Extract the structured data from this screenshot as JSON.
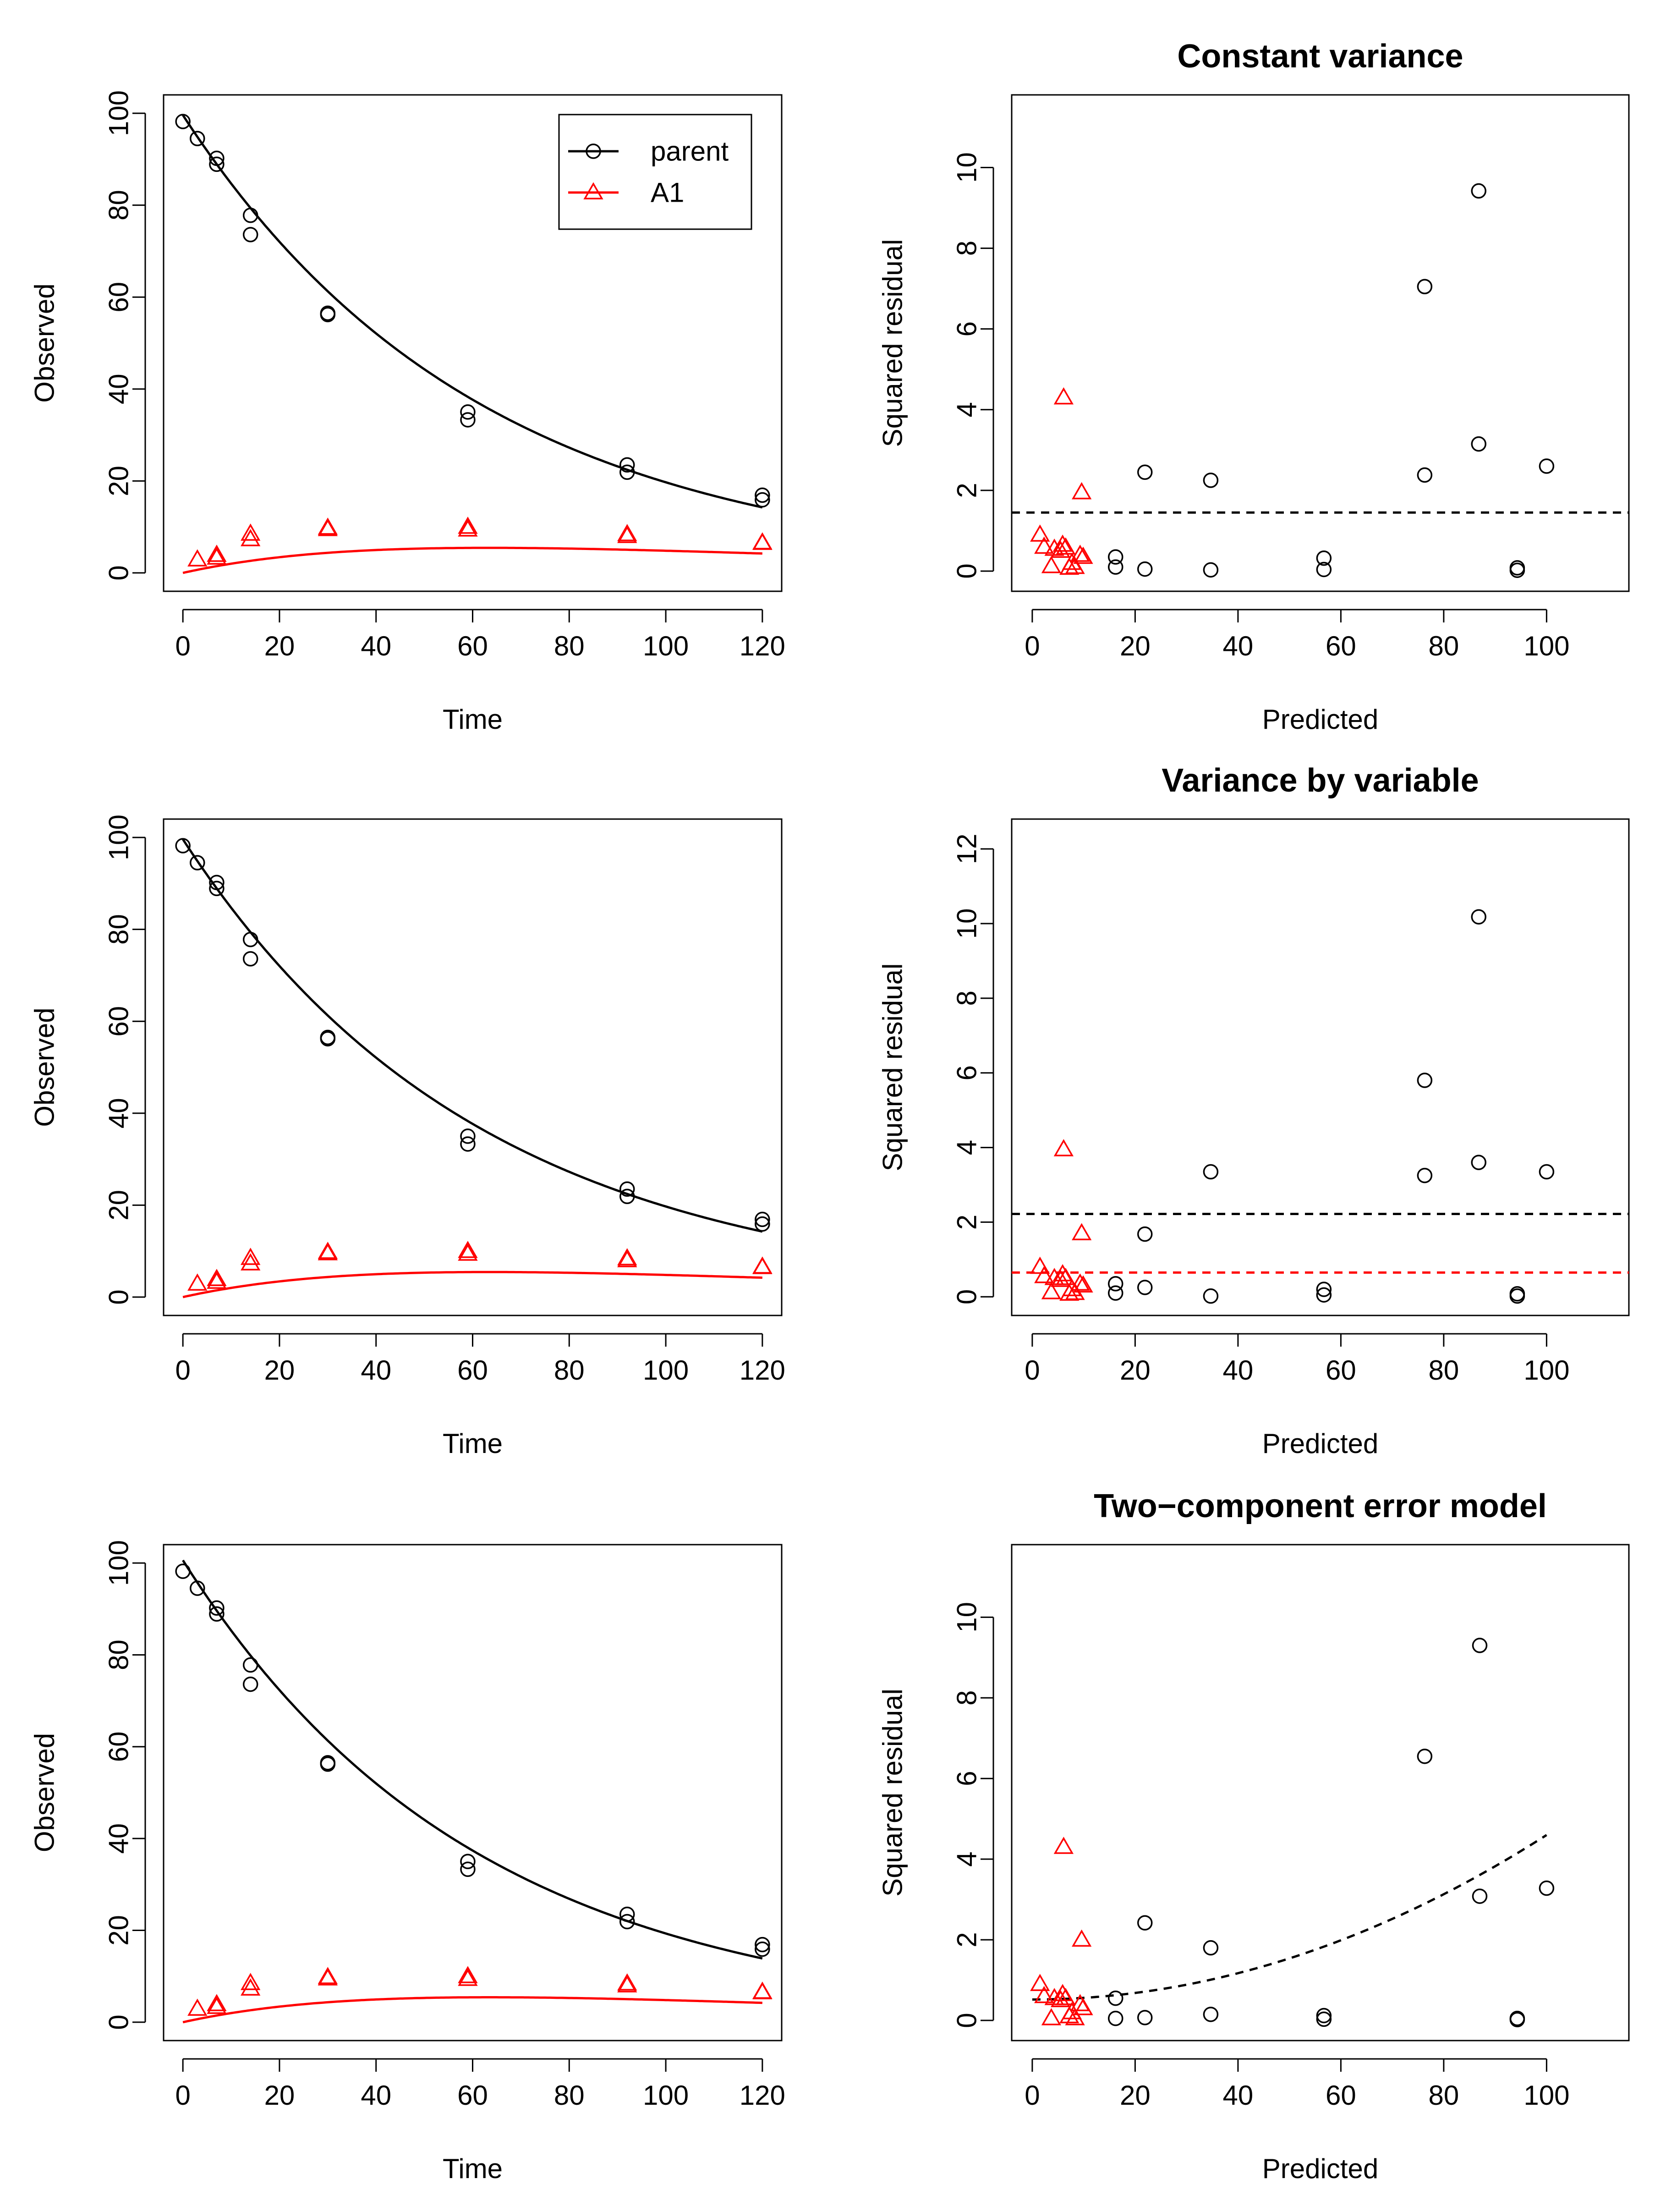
{
  "colors": {
    "parent": "#000000",
    "A1": "#ff0000"
  },
  "legend": {
    "items": [
      {
        "label": "parent",
        "marker": "circle",
        "color": "#000000"
      },
      {
        "label": "A1",
        "marker": "triangle",
        "color": "#ff0000"
      }
    ]
  },
  "chart_data": [
    {
      "id": "fit-const",
      "type": "scatter",
      "title": "",
      "xlabel": "Time",
      "ylabel": "Observed",
      "xlim": [
        -4,
        124
      ],
      "ylim": [
        -4,
        104
      ],
      "xticks": [
        0,
        20,
        40,
        60,
        80,
        100,
        120
      ],
      "yticks": [
        0,
        20,
        40,
        60,
        80,
        100
      ],
      "legend": true,
      "series": [
        {
          "name": "parent",
          "marker": "circle",
          "color": "#000000",
          "x": [
            0,
            3,
            7,
            7,
            14,
            14,
            30,
            30,
            59,
            59,
            92,
            92,
            120,
            120
          ],
          "y": [
            98.2,
            94.5,
            90.2,
            88.9,
            77.8,
            73.6,
            56.5,
            56.2,
            35.0,
            33.3,
            23.5,
            21.9,
            16.9,
            15.9
          ]
        },
        {
          "name": "A1",
          "marker": "triangle",
          "color": "#ff0000",
          "x": [
            3,
            7,
            7,
            14,
            14,
            30,
            30,
            59,
            59,
            92,
            92,
            120,
            120
          ],
          "y": [
            2.9,
            3.9,
            3.3,
            8.5,
            7.3,
            9.8,
            9.5,
            10.0,
            9.4,
            8.4,
            8.0,
            6.6,
            6.5
          ]
        }
      ],
      "curves": [
        {
          "name": "parent-fit",
          "color": "#000000",
          "model": "parent",
          "P0": 99.6,
          "k": 0.0162
        },
        {
          "name": "A1-fit",
          "color": "#ff0000",
          "model": "metabolite",
          "P0": 99.6,
          "k": 0.0162,
          "f": 0.145,
          "kA": 0.0154
        }
      ]
    },
    {
      "id": "resid-const",
      "type": "scatter",
      "title": "Constant variance",
      "xlabel": "Predicted",
      "ylabel": "Squared residual",
      "xlim": [
        -4,
        116
      ],
      "ylim": [
        -0.5,
        11.8
      ],
      "xticks": [
        0,
        20,
        40,
        60,
        80,
        100
      ],
      "yticks": [
        0,
        2,
        4,
        6,
        8,
        10
      ],
      "series": [
        {
          "name": "parent",
          "marker": "circle",
          "color": "#000000",
          "x": [
            16.2,
            16.2,
            21.9,
            21.9,
            34.7,
            34.7,
            56.7,
            56.7,
            76.3,
            76.3,
            86.8,
            86.8,
            94.3,
            94.3,
            100.0
          ],
          "y": [
            0.35,
            0.1,
            2.45,
            0.05,
            2.25,
            0.03,
            0.32,
            0.04,
            7.05,
            2.38,
            9.42,
            3.15,
            0.08,
            0.02,
            2.6
          ]
        },
        {
          "name": "A1",
          "marker": "triangle",
          "color": "#ff0000",
          "x": [
            1.5,
            2.3,
            3.7,
            4.3,
            5.5,
            5.9,
            6.1,
            6.5,
            7.2,
            7.7,
            8.3,
            9.3,
            9.6,
            9.9
          ],
          "y": [
            0.9,
            0.6,
            0.12,
            0.55,
            0.5,
            0.65,
            4.3,
            0.58,
            0.08,
            0.2,
            0.1,
            0.4,
            1.95,
            0.35
          ]
        }
      ],
      "hlines": [
        {
          "y": 1.45,
          "color": "#000000"
        }
      ]
    },
    {
      "id": "fit-var",
      "type": "scatter",
      "title": "",
      "xlabel": "Time",
      "ylabel": "Observed",
      "xlim": [
        -4,
        124
      ],
      "ylim": [
        -4,
        104
      ],
      "xticks": [
        0,
        20,
        40,
        60,
        80,
        100,
        120
      ],
      "yticks": [
        0,
        20,
        40,
        60,
        80,
        100
      ],
      "series": [
        {
          "name": "parent",
          "marker": "circle",
          "color": "#000000",
          "x": [
            0,
            3,
            7,
            7,
            14,
            14,
            30,
            30,
            59,
            59,
            92,
            92,
            120,
            120
          ],
          "y": [
            98.2,
            94.5,
            90.2,
            88.9,
            77.8,
            73.6,
            56.5,
            56.2,
            35.0,
            33.3,
            23.5,
            21.9,
            16.9,
            15.9
          ]
        },
        {
          "name": "A1",
          "marker": "triangle",
          "color": "#ff0000",
          "x": [
            3,
            7,
            7,
            14,
            14,
            30,
            30,
            59,
            59,
            92,
            92,
            120,
            120
          ],
          "y": [
            2.9,
            3.9,
            3.3,
            8.5,
            7.3,
            9.8,
            9.5,
            10.0,
            9.4,
            8.4,
            8.0,
            6.6,
            6.5
          ]
        }
      ],
      "curves": [
        {
          "name": "parent-fit",
          "color": "#000000",
          "model": "parent",
          "P0": 99.6,
          "k": 0.0162
        },
        {
          "name": "A1-fit",
          "color": "#ff0000",
          "model": "metabolite",
          "P0": 99.6,
          "k": 0.0162,
          "f": 0.145,
          "kA": 0.0154
        }
      ]
    },
    {
      "id": "resid-var",
      "type": "scatter",
      "title": "Variance by variable",
      "xlabel": "Predicted",
      "ylabel": "Squared residual",
      "xlim": [
        -4,
        116
      ],
      "ylim": [
        -0.5,
        12.8
      ],
      "xticks": [
        0,
        20,
        40,
        60,
        80,
        100
      ],
      "yticks": [
        0,
        2,
        4,
        6,
        8,
        10,
        12
      ],
      "series": [
        {
          "name": "parent",
          "marker": "circle",
          "color": "#000000",
          "x": [
            16.2,
            16.2,
            21.9,
            21.9,
            34.7,
            34.7,
            56.7,
            56.7,
            76.3,
            76.3,
            86.8,
            86.8,
            94.3,
            94.3,
            100.0
          ],
          "y": [
            0.35,
            0.1,
            1.68,
            0.25,
            3.35,
            0.02,
            0.2,
            0.05,
            5.8,
            3.25,
            10.18,
            3.6,
            0.08,
            0.02,
            3.35
          ]
        },
        {
          "name": "A1",
          "marker": "triangle",
          "color": "#ff0000",
          "x": [
            1.5,
            2.3,
            3.7,
            4.3,
            5.5,
            5.9,
            6.1,
            6.5,
            7.2,
            7.7,
            8.3,
            9.3,
            9.6,
            9.9
          ],
          "y": [
            0.8,
            0.55,
            0.12,
            0.5,
            0.45,
            0.6,
            3.95,
            0.5,
            0.08,
            0.2,
            0.1,
            0.35,
            1.7,
            0.3
          ]
        }
      ],
      "hlines": [
        {
          "y": 2.22,
          "color": "#000000"
        },
        {
          "y": 0.65,
          "color": "#ff0000"
        }
      ]
    },
    {
      "id": "fit-tc",
      "type": "scatter",
      "title": "",
      "xlabel": "Time",
      "ylabel": "Observed",
      "xlim": [
        -4,
        124
      ],
      "ylim": [
        -4,
        104
      ],
      "xticks": [
        0,
        20,
        40,
        60,
        80,
        100,
        120
      ],
      "yticks": [
        0,
        20,
        40,
        60,
        80,
        100
      ],
      "series": [
        {
          "name": "parent",
          "marker": "circle",
          "color": "#000000",
          "x": [
            0,
            3,
            7,
            7,
            14,
            14,
            30,
            30,
            59,
            59,
            92,
            92,
            120,
            120
          ],
          "y": [
            98.2,
            94.5,
            90.2,
            88.9,
            77.8,
            73.6,
            56.5,
            56.2,
            35.0,
            33.3,
            23.5,
            21.9,
            16.9,
            15.9
          ]
        },
        {
          "name": "A1",
          "marker": "triangle",
          "color": "#ff0000",
          "x": [
            3,
            7,
            7,
            14,
            14,
            30,
            30,
            59,
            59,
            92,
            92,
            120,
            120
          ],
          "y": [
            2.9,
            3.9,
            3.3,
            8.5,
            7.3,
            9.8,
            9.5,
            10.0,
            9.4,
            8.4,
            8.0,
            6.6,
            6.5
          ]
        }
      ],
      "curves": [
        {
          "name": "parent-fit",
          "color": "#000000",
          "model": "parent",
          "P0": 100.6,
          "k": 0.0165
        },
        {
          "name": "A1-fit",
          "color": "#ff0000",
          "model": "metabolite",
          "P0": 100.6,
          "k": 0.0165,
          "f": 0.14,
          "kA": 0.015
        }
      ]
    },
    {
      "id": "resid-tc",
      "type": "scatter",
      "title": "Two−component error model",
      "xlabel": "Predicted",
      "ylabel": "Squared residual",
      "xlim": [
        -4,
        116
      ],
      "ylim": [
        -0.5,
        11.8
      ],
      "xticks": [
        0,
        20,
        40,
        60,
        80,
        100
      ],
      "yticks": [
        0,
        2,
        4,
        6,
        8,
        10
      ],
      "series": [
        {
          "name": "parent",
          "marker": "circle",
          "color": "#000000",
          "x": [
            16.2,
            16.2,
            21.9,
            21.9,
            34.7,
            34.7,
            56.7,
            56.7,
            76.3,
            87.0,
            87.0,
            94.3,
            94.3,
            100.0
          ],
          "y": [
            0.55,
            0.05,
            2.42,
            0.07,
            1.8,
            0.15,
            0.12,
            0.03,
            6.55,
            9.3,
            3.08,
            0.05,
            0.02,
            3.28
          ]
        },
        {
          "name": "A1",
          "marker": "triangle",
          "color": "#ff0000",
          "x": [
            1.5,
            2.3,
            3.7,
            4.3,
            5.5,
            5.9,
            6.1,
            6.5,
            7.2,
            7.7,
            8.3,
            9.3,
            9.6,
            9.9
          ],
          "y": [
            0.9,
            0.6,
            0.05,
            0.55,
            0.5,
            0.65,
            4.3,
            0.55,
            0.1,
            0.2,
            0.05,
            0.4,
            2.0,
            0.3
          ]
        }
      ],
      "varcurve": {
        "color": "#000000",
        "a": 0.72,
        "b": 0.0202,
        "from": 0,
        "to": 100
      }
    }
  ]
}
